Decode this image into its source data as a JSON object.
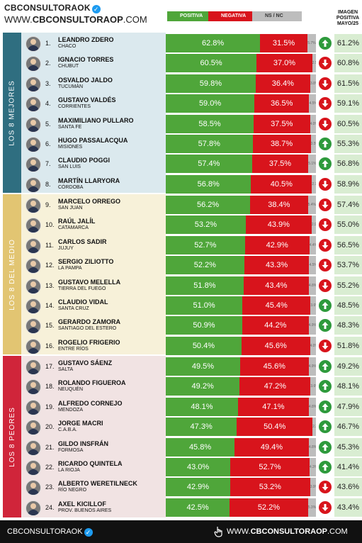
{
  "header": {
    "brand_top": "CBCONSULTORAOK",
    "brand_url_prefix": "WWW.",
    "brand_url_bold": "CBCONSULTORAOP",
    "brand_url_suffix": ".COM",
    "legend_pos": "POSITIVA",
    "legend_neg": "NEGATIVA",
    "legend_ns": "NS / NC",
    "img_title_1": "IMAGEN",
    "img_title_2": "POSITIVA",
    "img_title_3": "MAYO/25"
  },
  "sections": [
    {
      "label": "LOS 8 MEJORES",
      "color": "#2f6e80",
      "band": "#dbe9ee"
    },
    {
      "label": "LOS 8 DEL MEDIO",
      "color": "#e2c572",
      "band": "#f7f1d9"
    },
    {
      "label": "LOS 8 PEORES",
      "color": "#d0253a",
      "band": "#f1e3e3"
    }
  ],
  "colors": {
    "positive": "#4fa63a",
    "negative": "#d8141c",
    "nsnc": "#bdbdbd",
    "up": "#2e9a3c",
    "down": "#d8141c"
  },
  "chart_data": {
    "type": "bar",
    "stacked": true,
    "orientation": "horizontal",
    "series_names": [
      "POSITIVA",
      "NEGATIVA",
      "NS / NC"
    ],
    "rows": [
      {
        "rank": "1.",
        "name": "LEANDRO ZDERO",
        "province": "CHACO",
        "pos": 62.8,
        "pos_label": "62.8%",
        "neg": 31.5,
        "neg_label": "31.5%",
        "ns": 5.7,
        "ns_label": "5.7%",
        "trend": "up",
        "prev": "61.2%"
      },
      {
        "rank": "2.",
        "name": "IGNACIO TORRES",
        "province": "CHUBUT",
        "pos": 60.5,
        "pos_label": "60.5%",
        "neg": 37.0,
        "neg_label": "37.0%",
        "ns": 2.5,
        "ns_label": "2.5%",
        "trend": "down",
        "prev": "60.8%"
      },
      {
        "rank": "3.",
        "name": "OSVALDO JALDO",
        "province": "TUCUMÁN",
        "pos": 59.8,
        "pos_label": "59.8%",
        "neg": 36.4,
        "neg_label": "36.4%",
        "ns": 3.8,
        "ns_label": "3.8%",
        "trend": "down",
        "prev": "61.5%"
      },
      {
        "rank": "4.",
        "name": "GUSTAVO VALDÉS",
        "province": "CORRIENTES",
        "pos": 59.0,
        "pos_label": "59.0%",
        "neg": 36.5,
        "neg_label": "36.5%",
        "ns": 4.5,
        "ns_label": "4.5%",
        "trend": "down",
        "prev": "59.1%"
      },
      {
        "rank": "5.",
        "name": "MAXIMILIANO PULLARO",
        "province": "SANTA FE",
        "pos": 58.5,
        "pos_label": "58.5%",
        "neg": 37.5,
        "neg_label": "37.5%",
        "ns": 4.0,
        "ns_label": "4.0%",
        "trend": "down",
        "prev": "60.5%"
      },
      {
        "rank": "6.",
        "name": "HUGO PASSALACQUA",
        "province": "MISIONES",
        "pos": 57.8,
        "pos_label": "57.8%",
        "neg": 38.7,
        "neg_label": "38.7%",
        "ns": 3.5,
        "ns_label": "3.5%",
        "trend": "up",
        "prev": "55.3%"
      },
      {
        "rank": "7.",
        "name": "CLAUDIO POGGI",
        "province": "SAN LUIS",
        "pos": 57.4,
        "pos_label": "57.4%",
        "neg": 37.5,
        "neg_label": "37.5%",
        "ns": 5.1,
        "ns_label": "5.1%",
        "trend": "up",
        "prev": "56.8%"
      },
      {
        "rank": "8.",
        "name": "MARTÍN LLARYORA",
        "province": "CÓRDOBA",
        "pos": 56.8,
        "pos_label": "56.8%",
        "neg": 40.5,
        "neg_label": "40.5%",
        "ns": 2.7,
        "ns_label": "2.7%",
        "trend": "down",
        "prev": "58.9%"
      },
      {
        "rank": "9.",
        "name": "MARCELO ORREGO",
        "province": "SAN JUAN",
        "pos": 56.2,
        "pos_label": "56.2%",
        "neg": 38.4,
        "neg_label": "38.4%",
        "ns": 5.4,
        "ns_label": "5.4%",
        "trend": "down",
        "prev": "57.4%"
      },
      {
        "rank": "10.",
        "name": "RAÚL JALÍL",
        "province": "CATAMARCA",
        "pos": 53.2,
        "pos_label": "53.2%",
        "neg": 43.9,
        "neg_label": "43.9%",
        "ns": 2.9,
        "ns_label": "2.9%",
        "trend": "down",
        "prev": "55.0%"
      },
      {
        "rank": "11.",
        "name": "CARLOS SADIR",
        "province": "JUJUY",
        "pos": 52.7,
        "pos_label": "52.7%",
        "neg": 42.9,
        "neg_label": "42.9%",
        "ns": 4.4,
        "ns_label": "4.4%",
        "trend": "down",
        "prev": "56.5%"
      },
      {
        "rank": "12.",
        "name": "SERGIO ZILIOTTO",
        "province": "LA PAMPA",
        "pos": 52.2,
        "pos_label": "52.2%",
        "neg": 43.3,
        "neg_label": "43.3%",
        "ns": 4.5,
        "ns_label": "4.5%",
        "trend": "down",
        "prev": "53.7%"
      },
      {
        "rank": "13.",
        "name": "GUSTAVO MELELLA",
        "province": "TIERRA DEL FUEGO",
        "pos": 51.8,
        "pos_label": "51.8%",
        "neg": 43.4,
        "neg_label": "43.4%",
        "ns": 4.8,
        "ns_label": "4.8%",
        "trend": "down",
        "prev": "55.2%"
      },
      {
        "rank": "14.",
        "name": "CLAUDIO VIDAL",
        "province": "SANTA CRUZ",
        "pos": 51.0,
        "pos_label": "51.0%",
        "neg": 45.4,
        "neg_label": "45.4%",
        "ns": 3.6,
        "ns_label": "3.6%",
        "trend": "up",
        "prev": "48.5%"
      },
      {
        "rank": "15.",
        "name": "GERARDO ZAMORA",
        "province": "SANTIAGO DEL ESTERO",
        "pos": 50.9,
        "pos_label": "50.9%",
        "neg": 44.2,
        "neg_label": "44.2%",
        "ns": 4.9,
        "ns_label": "4.9%",
        "trend": "up",
        "prev": "48.3%"
      },
      {
        "rank": "16.",
        "name": "ROGELIO FRIGERIO",
        "province": "ENTRE RÍOS",
        "pos": 50.4,
        "pos_label": "50.4%",
        "neg": 45.6,
        "neg_label": "45.6%",
        "ns": 4.0,
        "ns_label": "4.0%",
        "trend": "down",
        "prev": "51.8%"
      },
      {
        "rank": "17.",
        "name": "GUSTAVO SÁENZ",
        "province": "SALTA",
        "pos": 49.5,
        "pos_label": "49.5%",
        "neg": 45.6,
        "neg_label": "45.6%",
        "ns": 4.9,
        "ns_label": "4.9%",
        "trend": "up",
        "prev": "49.2%"
      },
      {
        "rank": "18.",
        "name": "ROLANDO FIGUEROA",
        "province": "NEUQUÉN",
        "pos": 49.2,
        "pos_label": "49.2%",
        "neg": 47.2,
        "neg_label": "47.2%",
        "ns": 3.6,
        "ns_label": "3.6%",
        "trend": "up",
        "prev": "48.1%"
      },
      {
        "rank": "19.",
        "name": "ALFREDO CORNEJO",
        "province": "MENDOZA",
        "pos": 48.1,
        "pos_label": "48.1%",
        "neg": 47.1,
        "neg_label": "47.1%",
        "ns": 4.8,
        "ns_label": "4.8%",
        "trend": "up",
        "prev": "47.9%"
      },
      {
        "rank": "20.",
        "name": "JORGE MACRI",
        "province": "C.A.B.A.",
        "pos": 47.3,
        "pos_label": "47.3%",
        "neg": 50.4,
        "neg_label": "50.4%",
        "ns": 2.3,
        "ns_label": "2.3%",
        "trend": "up",
        "prev": "46.7%"
      },
      {
        "rank": "21.",
        "name": "GILDO INSFRÁN",
        "province": "FORMOSA",
        "pos": 45.8,
        "pos_label": "45.8%",
        "neg": 49.4,
        "neg_label": "49.4%",
        "ns": 4.8,
        "ns_label": "4.8%",
        "trend": "up",
        "prev": "45.3%"
      },
      {
        "rank": "22.",
        "name": "RICARDO QUINTELA",
        "province": "LA RIOJA",
        "pos": 43.0,
        "pos_label": "43.0%",
        "neg": 52.7,
        "neg_label": "52.7%",
        "ns": 4.3,
        "ns_label": "4.3%",
        "trend": "up",
        "prev": "41.4%"
      },
      {
        "rank": "23.",
        "name": "ALBERTO WERETILNECK",
        "province": "RÍO NEGRO",
        "pos": 42.9,
        "pos_label": "42.9%",
        "neg": 53.2,
        "neg_label": "53.2%",
        "ns": 3.9,
        "ns_label": "3.9%",
        "trend": "down",
        "prev": "43.6%"
      },
      {
        "rank": "24.",
        "name": "AXEL KICILLOF",
        "province": "PROV. BUENOS AIRES",
        "pos": 42.5,
        "pos_label": "42.5%",
        "neg": 52.2,
        "neg_label": "52.2%",
        "ns": 5.3,
        "ns_label": "5.3%",
        "trend": "down",
        "prev": "43.4%"
      }
    ]
  },
  "footer": {
    "left": "CBCONSULTORAOK",
    "right_prefix": "WWW.",
    "right_bold": "CBCONSULTORAOP",
    "right_suffix": ".COM"
  }
}
